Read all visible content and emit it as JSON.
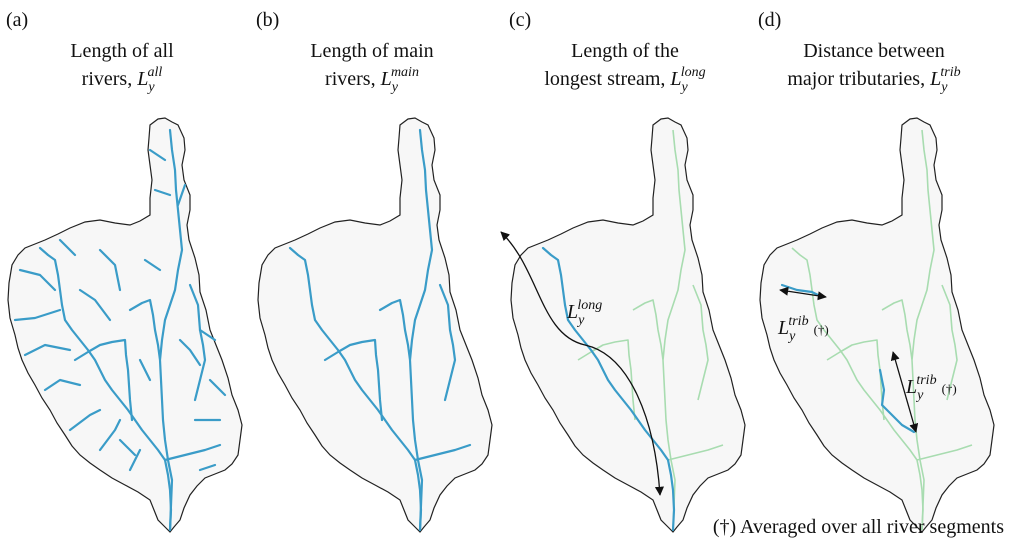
{
  "panels": [
    {
      "label": "(a)",
      "title": [
        "Length of all",
        "rivers,"
      ],
      "symbol": {
        "base": "L",
        "sub": "y",
        "sup": "all"
      }
    },
    {
      "label": "(b)",
      "title": [
        "Length of main",
        "rivers,"
      ],
      "symbol": {
        "base": "L",
        "sub": "y",
        "sup": "main"
      }
    },
    {
      "label": "(c)",
      "title": [
        "Length of the",
        "longest stream,"
      ],
      "symbol": {
        "base": "L",
        "sub": "y",
        "sup": "long"
      }
    },
    {
      "label": "(d)",
      "title": [
        "Distance between",
        "major tributaries,"
      ],
      "symbol": {
        "base": "L",
        "sub": "y",
        "sup": "trib"
      }
    }
  ],
  "annotations": [
    {
      "base": "L",
      "sub": "y",
      "sup": "long"
    },
    {
      "base": "L",
      "sub": "y",
      "sup": "trib",
      "note": "(†)"
    },
    {
      "base": "L",
      "sub": "y",
      "sup": "trib",
      "note": "(†)"
    }
  ],
  "footnote": "(†) Averaged over all river segments"
}
